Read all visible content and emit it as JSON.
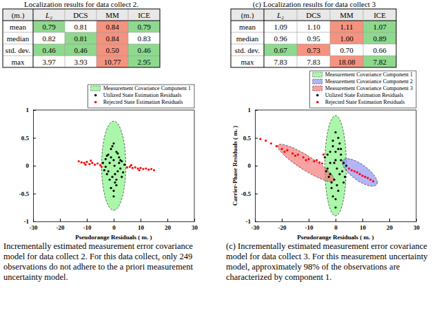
{
  "tables": [
    {
      "caption": "Localization results for data collect 2.",
      "corner": "(m.)",
      "columns": [
        "L₂",
        "DCS",
        "MM",
        "ICE"
      ],
      "rows": [
        {
          "label": "mean",
          "values": [
            "0.79",
            "0.81",
            "0.84",
            "0.79"
          ],
          "colors": [
            "#8fd98f",
            null,
            "#f4937f",
            "#8fd98f"
          ]
        },
        {
          "label": "median",
          "values": [
            "0.82",
            "0.81",
            "0.84",
            "0.83"
          ],
          "colors": [
            null,
            "#8fd98f",
            "#f4937f",
            null
          ]
        },
        {
          "label": "std. dev.",
          "values": [
            "0.46",
            "0.46",
            "0.50",
            "0.46"
          ],
          "colors": [
            "#8fd98f",
            "#8fd98f",
            "#f4937f",
            "#8fd98f"
          ]
        },
        {
          "label": "max",
          "values": [
            "3.97",
            "3.93",
            "10.77",
            "2.95"
          ],
          "colors": [
            null,
            null,
            "#f4937f",
            "#8fd98f"
          ]
        }
      ]
    },
    {
      "caption": "(c) Localization results for data collect 3",
      "corner": "(m.)",
      "columns": [
        "L₂",
        "DCS",
        "MM",
        "ICE"
      ],
      "rows": [
        {
          "label": "mean",
          "values": [
            "1.09",
            "1.10",
            "1.11",
            "1.07"
          ],
          "colors": [
            null,
            null,
            "#f4937f",
            "#8fd98f"
          ]
        },
        {
          "label": "median",
          "values": [
            "0.96",
            "0.95",
            "1.00",
            "0.89"
          ],
          "colors": [
            null,
            null,
            "#f4937f",
            "#8fd98f"
          ]
        },
        {
          "label": "std. dev.",
          "values": [
            "0.67",
            "0.73",
            "0.70",
            "0.66"
          ],
          "colors": [
            "#8fd98f",
            "#f4937f",
            null,
            null
          ]
        },
        {
          "label": "max",
          "values": [
            "7.83",
            "7.83",
            "18.08",
            "7.82"
          ],
          "colors": [
            null,
            null,
            "#f4937f",
            "#8fd98f"
          ]
        }
      ]
    }
  ],
  "chart_data": [
    {
      "type": "scatter",
      "x_label": "Pseudorange Residuals ( m. )",
      "xlim": [
        -30,
        30
      ],
      "xticks": [
        -30,
        -20,
        -10,
        0,
        10,
        20,
        30
      ],
      "ylim": [
        -1,
        1
      ],
      "yticks": [
        -1,
        -0.5,
        0,
        0.5,
        1
      ],
      "legend": "upper right",
      "components": [
        {
          "name": "Measurement Covariance Component 1",
          "color": "#7cf27c",
          "line_style": "dashed",
          "center": [
            0,
            0
          ],
          "axes": [
            [
              4.5,
              0
            ],
            [
              0,
              0.8
            ]
          ]
        }
      ],
      "series": [
        {
          "name": "Utilized State Estimation Residuals",
          "color": "#000000",
          "marker": "circle",
          "x": [
            -4,
            -3.5,
            -3,
            -2.5,
            -2,
            -1.5,
            -1,
            -0.5,
            0,
            0.5,
            1,
            1.5,
            2,
            2.5,
            3,
            3.5,
            4,
            -3,
            -2,
            -1,
            0,
            1,
            2,
            3,
            -1.5,
            -0.5,
            0.5,
            1.5,
            0,
            0,
            -2.5,
            2.5,
            -1,
            1,
            0.3
          ],
          "values": [
            0.05,
            -0.08,
            0.12,
            -0.15,
            0.2,
            -0.25,
            0.3,
            -0.2,
            0.1,
            -0.3,
            0.25,
            -0.1,
            0.15,
            -0.05,
            0.08,
            -0.12,
            0.02,
            -0.02,
            -0.1,
            0.15,
            -0.45,
            -0.35,
            0.05,
            -0.2,
            0.05,
            0.35,
            -0.15,
            0.22,
            -0.55,
            0.4,
            0.18,
            0.1,
            -0.4,
            -0.25,
            0.0
          ]
        },
        {
          "name": "Rejected State Estimation Residuals",
          "color": "#ff0000",
          "marker": "circle",
          "x": [
            -13,
            -12,
            -11,
            -10,
            -9,
            -8,
            -7,
            -6,
            -5,
            -4.5,
            5,
            6,
            7,
            8,
            9,
            10,
            11,
            12,
            13,
            14,
            15,
            -10.5,
            -8.5,
            6.5,
            9.5
          ],
          "values": [
            0.08,
            0.06,
            0.05,
            0.07,
            0.03,
            0.05,
            0.02,
            0.04,
            0.01,
            -0.02,
            -0.03,
            -0.02,
            -0.04,
            -0.03,
            -0.05,
            -0.04,
            -0.06,
            -0.05,
            -0.07,
            -0.06,
            -0.08,
            0.02,
            0.09,
            0.01,
            -0.08
          ]
        }
      ],
      "caption": "Incrementally estimated measurement error covariance model for data collect 2. For this data collect, only 249 observations do not adhere to the a priori measurement uncertainty model."
    },
    {
      "type": "scatter",
      "x_label": "Pseudorange Residuals ( m. )",
      "y_label": "Carrier-Phase Residuals ( m. )",
      "xlim": [
        -30,
        30
      ],
      "xticks": [
        -30,
        -20,
        -10,
        0,
        10,
        20,
        30
      ],
      "ylim": [
        -1,
        1
      ],
      "yticks": [
        -1,
        -0.5,
        0,
        0.5,
        1
      ],
      "legend": "upper right",
      "components": [
        {
          "name": "Measurement Covariance Component 1",
          "color": "#7cf27c",
          "line_style": "dashed",
          "center": [
            0,
            0
          ],
          "axes": [
            [
              4,
              0
            ],
            [
              0,
              0.9
            ]
          ]
        },
        {
          "name": "Measurement Covariance Component 2",
          "color": "#8c8cf5",
          "line_style": "dashed",
          "center": [
            9,
            -0.12
          ],
          "axes": [
            [
              6.5,
              -0.18
            ],
            [
              0,
              0.17
            ]
          ]
        },
        {
          "name": "Measurement Covariance Component 3",
          "color": "#f57070",
          "line_style": "dashed",
          "center": [
            -11,
            0.05
          ],
          "axes": [
            [
              10.5,
              -0.3
            ],
            [
              0,
              0.15
            ]
          ]
        }
      ],
      "series": [
        {
          "name": "Utilized State Estimation Residuals",
          "color": "#000000",
          "marker": "circle",
          "x": [
            -4,
            -3.5,
            -3,
            -2.5,
            -2,
            -1.5,
            -1,
            -0.5,
            0,
            0.5,
            1,
            1.5,
            2,
            2.5,
            3,
            3.5,
            4,
            -3,
            -2,
            -1,
            0,
            1,
            2,
            3,
            -1,
            0,
            1,
            -0.5,
            0.5,
            0,
            -2,
            2,
            -1.5,
            1.5,
            0
          ],
          "values": [
            0.15,
            -0.1,
            0.2,
            -0.2,
            0.25,
            -0.3,
            0.35,
            -0.25,
            0.1,
            -0.35,
            0.3,
            -0.15,
            0.2,
            -0.1,
            0.05,
            -0.2,
            0,
            -0.05,
            -0.15,
            0.45,
            -0.6,
            -0.45,
            0.1,
            -0.3,
            -0.55,
            0.6,
            0.5,
            0.05,
            -0.05,
            -0.75,
            0.05,
            0.3,
            -0.4,
            0.4,
            0.25
          ]
        },
        {
          "name": "Rejected State Estimation Residuals",
          "color": "#ff0000",
          "marker": "circle",
          "x": [
            -28,
            -26,
            -24,
            -22,
            -20,
            -18,
            -16,
            -14,
            -12,
            -10,
            -8,
            -6,
            -5,
            -19,
            -15,
            -11,
            -7,
            5,
            6,
            7,
            8,
            9,
            10,
            11,
            12,
            13,
            14,
            -4.5
          ],
          "values": [
            0.48,
            0.45,
            0.4,
            0.35,
            0.3,
            0.28,
            0.22,
            0.2,
            0.15,
            0.12,
            0.08,
            0.06,
            0.04,
            0.25,
            0.18,
            0.1,
            0.1,
            -0.05,
            -0.08,
            -0.1,
            -0.12,
            -0.15,
            -0.18,
            -0.2,
            -0.22,
            -0.25,
            -0.28,
            0.2
          ]
        }
      ],
      "caption": "(c) Incrementally estimated measurement error covariance model for data collect 3. For this measurement uncertainty model, approximately 98% of the observations are characterized by component 1."
    }
  ]
}
